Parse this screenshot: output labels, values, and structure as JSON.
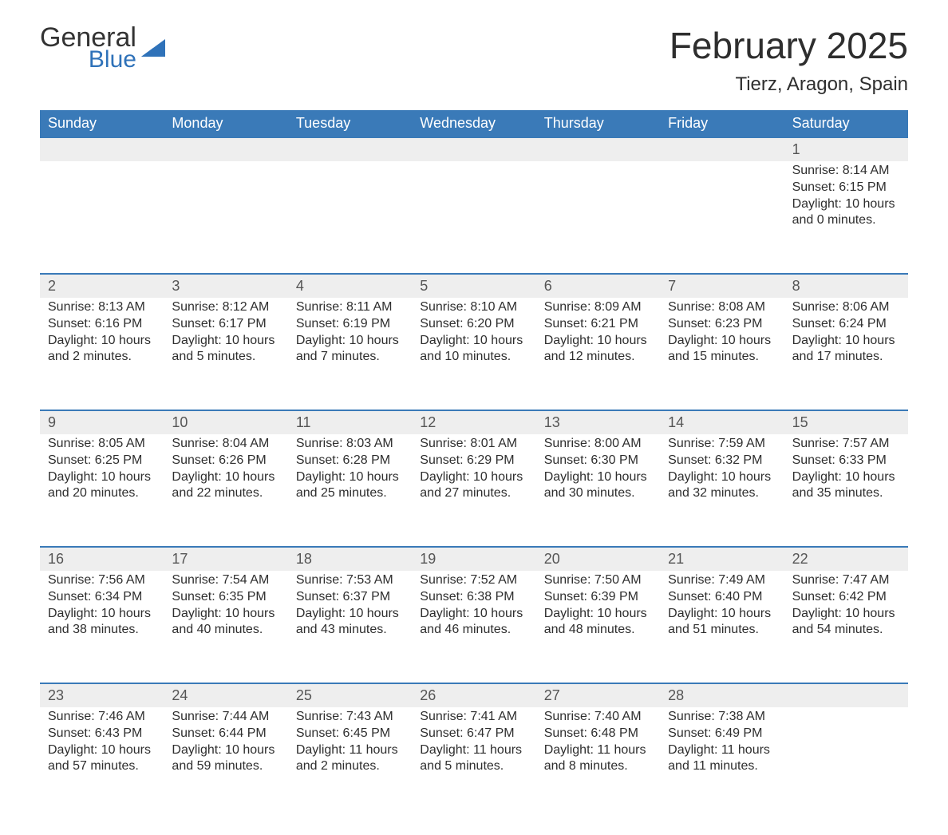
{
  "logo": {
    "word1": "General",
    "word2": "Blue"
  },
  "header": {
    "month_title": "February 2025",
    "location": "Tierz, Aragon, Spain"
  },
  "colors": {
    "header_bg": "#3a7ab8",
    "header_text": "#ffffff",
    "daynum_bg": "#eeeeee",
    "border": "#3a7ab8",
    "body_text": "#2e2e2e",
    "logo_blue": "#2f72b9"
  },
  "weekdays": [
    "Sunday",
    "Monday",
    "Tuesday",
    "Wednesday",
    "Thursday",
    "Friday",
    "Saturday"
  ],
  "weeks": [
    [
      null,
      null,
      null,
      null,
      null,
      null,
      {
        "n": "1",
        "sunrise": "Sunrise: 8:14 AM",
        "sunset": "Sunset: 6:15 PM",
        "d1": "Daylight: 10 hours",
        "d2": "and 0 minutes."
      }
    ],
    [
      {
        "n": "2",
        "sunrise": "Sunrise: 8:13 AM",
        "sunset": "Sunset: 6:16 PM",
        "d1": "Daylight: 10 hours",
        "d2": "and 2 minutes."
      },
      {
        "n": "3",
        "sunrise": "Sunrise: 8:12 AM",
        "sunset": "Sunset: 6:17 PM",
        "d1": "Daylight: 10 hours",
        "d2": "and 5 minutes."
      },
      {
        "n": "4",
        "sunrise": "Sunrise: 8:11 AM",
        "sunset": "Sunset: 6:19 PM",
        "d1": "Daylight: 10 hours",
        "d2": "and 7 minutes."
      },
      {
        "n": "5",
        "sunrise": "Sunrise: 8:10 AM",
        "sunset": "Sunset: 6:20 PM",
        "d1": "Daylight: 10 hours",
        "d2": "and 10 minutes."
      },
      {
        "n": "6",
        "sunrise": "Sunrise: 8:09 AM",
        "sunset": "Sunset: 6:21 PM",
        "d1": "Daylight: 10 hours",
        "d2": "and 12 minutes."
      },
      {
        "n": "7",
        "sunrise": "Sunrise: 8:08 AM",
        "sunset": "Sunset: 6:23 PM",
        "d1": "Daylight: 10 hours",
        "d2": "and 15 minutes."
      },
      {
        "n": "8",
        "sunrise": "Sunrise: 8:06 AM",
        "sunset": "Sunset: 6:24 PM",
        "d1": "Daylight: 10 hours",
        "d2": "and 17 minutes."
      }
    ],
    [
      {
        "n": "9",
        "sunrise": "Sunrise: 8:05 AM",
        "sunset": "Sunset: 6:25 PM",
        "d1": "Daylight: 10 hours",
        "d2": "and 20 minutes."
      },
      {
        "n": "10",
        "sunrise": "Sunrise: 8:04 AM",
        "sunset": "Sunset: 6:26 PM",
        "d1": "Daylight: 10 hours",
        "d2": "and 22 minutes."
      },
      {
        "n": "11",
        "sunrise": "Sunrise: 8:03 AM",
        "sunset": "Sunset: 6:28 PM",
        "d1": "Daylight: 10 hours",
        "d2": "and 25 minutes."
      },
      {
        "n": "12",
        "sunrise": "Sunrise: 8:01 AM",
        "sunset": "Sunset: 6:29 PM",
        "d1": "Daylight: 10 hours",
        "d2": "and 27 minutes."
      },
      {
        "n": "13",
        "sunrise": "Sunrise: 8:00 AM",
        "sunset": "Sunset: 6:30 PM",
        "d1": "Daylight: 10 hours",
        "d2": "and 30 minutes."
      },
      {
        "n": "14",
        "sunrise": "Sunrise: 7:59 AM",
        "sunset": "Sunset: 6:32 PM",
        "d1": "Daylight: 10 hours",
        "d2": "and 32 minutes."
      },
      {
        "n": "15",
        "sunrise": "Sunrise: 7:57 AM",
        "sunset": "Sunset: 6:33 PM",
        "d1": "Daylight: 10 hours",
        "d2": "and 35 minutes."
      }
    ],
    [
      {
        "n": "16",
        "sunrise": "Sunrise: 7:56 AM",
        "sunset": "Sunset: 6:34 PM",
        "d1": "Daylight: 10 hours",
        "d2": "and 38 minutes."
      },
      {
        "n": "17",
        "sunrise": "Sunrise: 7:54 AM",
        "sunset": "Sunset: 6:35 PM",
        "d1": "Daylight: 10 hours",
        "d2": "and 40 minutes."
      },
      {
        "n": "18",
        "sunrise": "Sunrise: 7:53 AM",
        "sunset": "Sunset: 6:37 PM",
        "d1": "Daylight: 10 hours",
        "d2": "and 43 minutes."
      },
      {
        "n": "19",
        "sunrise": "Sunrise: 7:52 AM",
        "sunset": "Sunset: 6:38 PM",
        "d1": "Daylight: 10 hours",
        "d2": "and 46 minutes."
      },
      {
        "n": "20",
        "sunrise": "Sunrise: 7:50 AM",
        "sunset": "Sunset: 6:39 PM",
        "d1": "Daylight: 10 hours",
        "d2": "and 48 minutes."
      },
      {
        "n": "21",
        "sunrise": "Sunrise: 7:49 AM",
        "sunset": "Sunset: 6:40 PM",
        "d1": "Daylight: 10 hours",
        "d2": "and 51 minutes."
      },
      {
        "n": "22",
        "sunrise": "Sunrise: 7:47 AM",
        "sunset": "Sunset: 6:42 PM",
        "d1": "Daylight: 10 hours",
        "d2": "and 54 minutes."
      }
    ],
    [
      {
        "n": "23",
        "sunrise": "Sunrise: 7:46 AM",
        "sunset": "Sunset: 6:43 PM",
        "d1": "Daylight: 10 hours",
        "d2": "and 57 minutes."
      },
      {
        "n": "24",
        "sunrise": "Sunrise: 7:44 AM",
        "sunset": "Sunset: 6:44 PM",
        "d1": "Daylight: 10 hours",
        "d2": "and 59 minutes."
      },
      {
        "n": "25",
        "sunrise": "Sunrise: 7:43 AM",
        "sunset": "Sunset: 6:45 PM",
        "d1": "Daylight: 11 hours",
        "d2": "and 2 minutes."
      },
      {
        "n": "26",
        "sunrise": "Sunrise: 7:41 AM",
        "sunset": "Sunset: 6:47 PM",
        "d1": "Daylight: 11 hours",
        "d2": "and 5 minutes."
      },
      {
        "n": "27",
        "sunrise": "Sunrise: 7:40 AM",
        "sunset": "Sunset: 6:48 PM",
        "d1": "Daylight: 11 hours",
        "d2": "and 8 minutes."
      },
      {
        "n": "28",
        "sunrise": "Sunrise: 7:38 AM",
        "sunset": "Sunset: 6:49 PM",
        "d1": "Daylight: 11 hours",
        "d2": "and 11 minutes."
      },
      null
    ]
  ]
}
